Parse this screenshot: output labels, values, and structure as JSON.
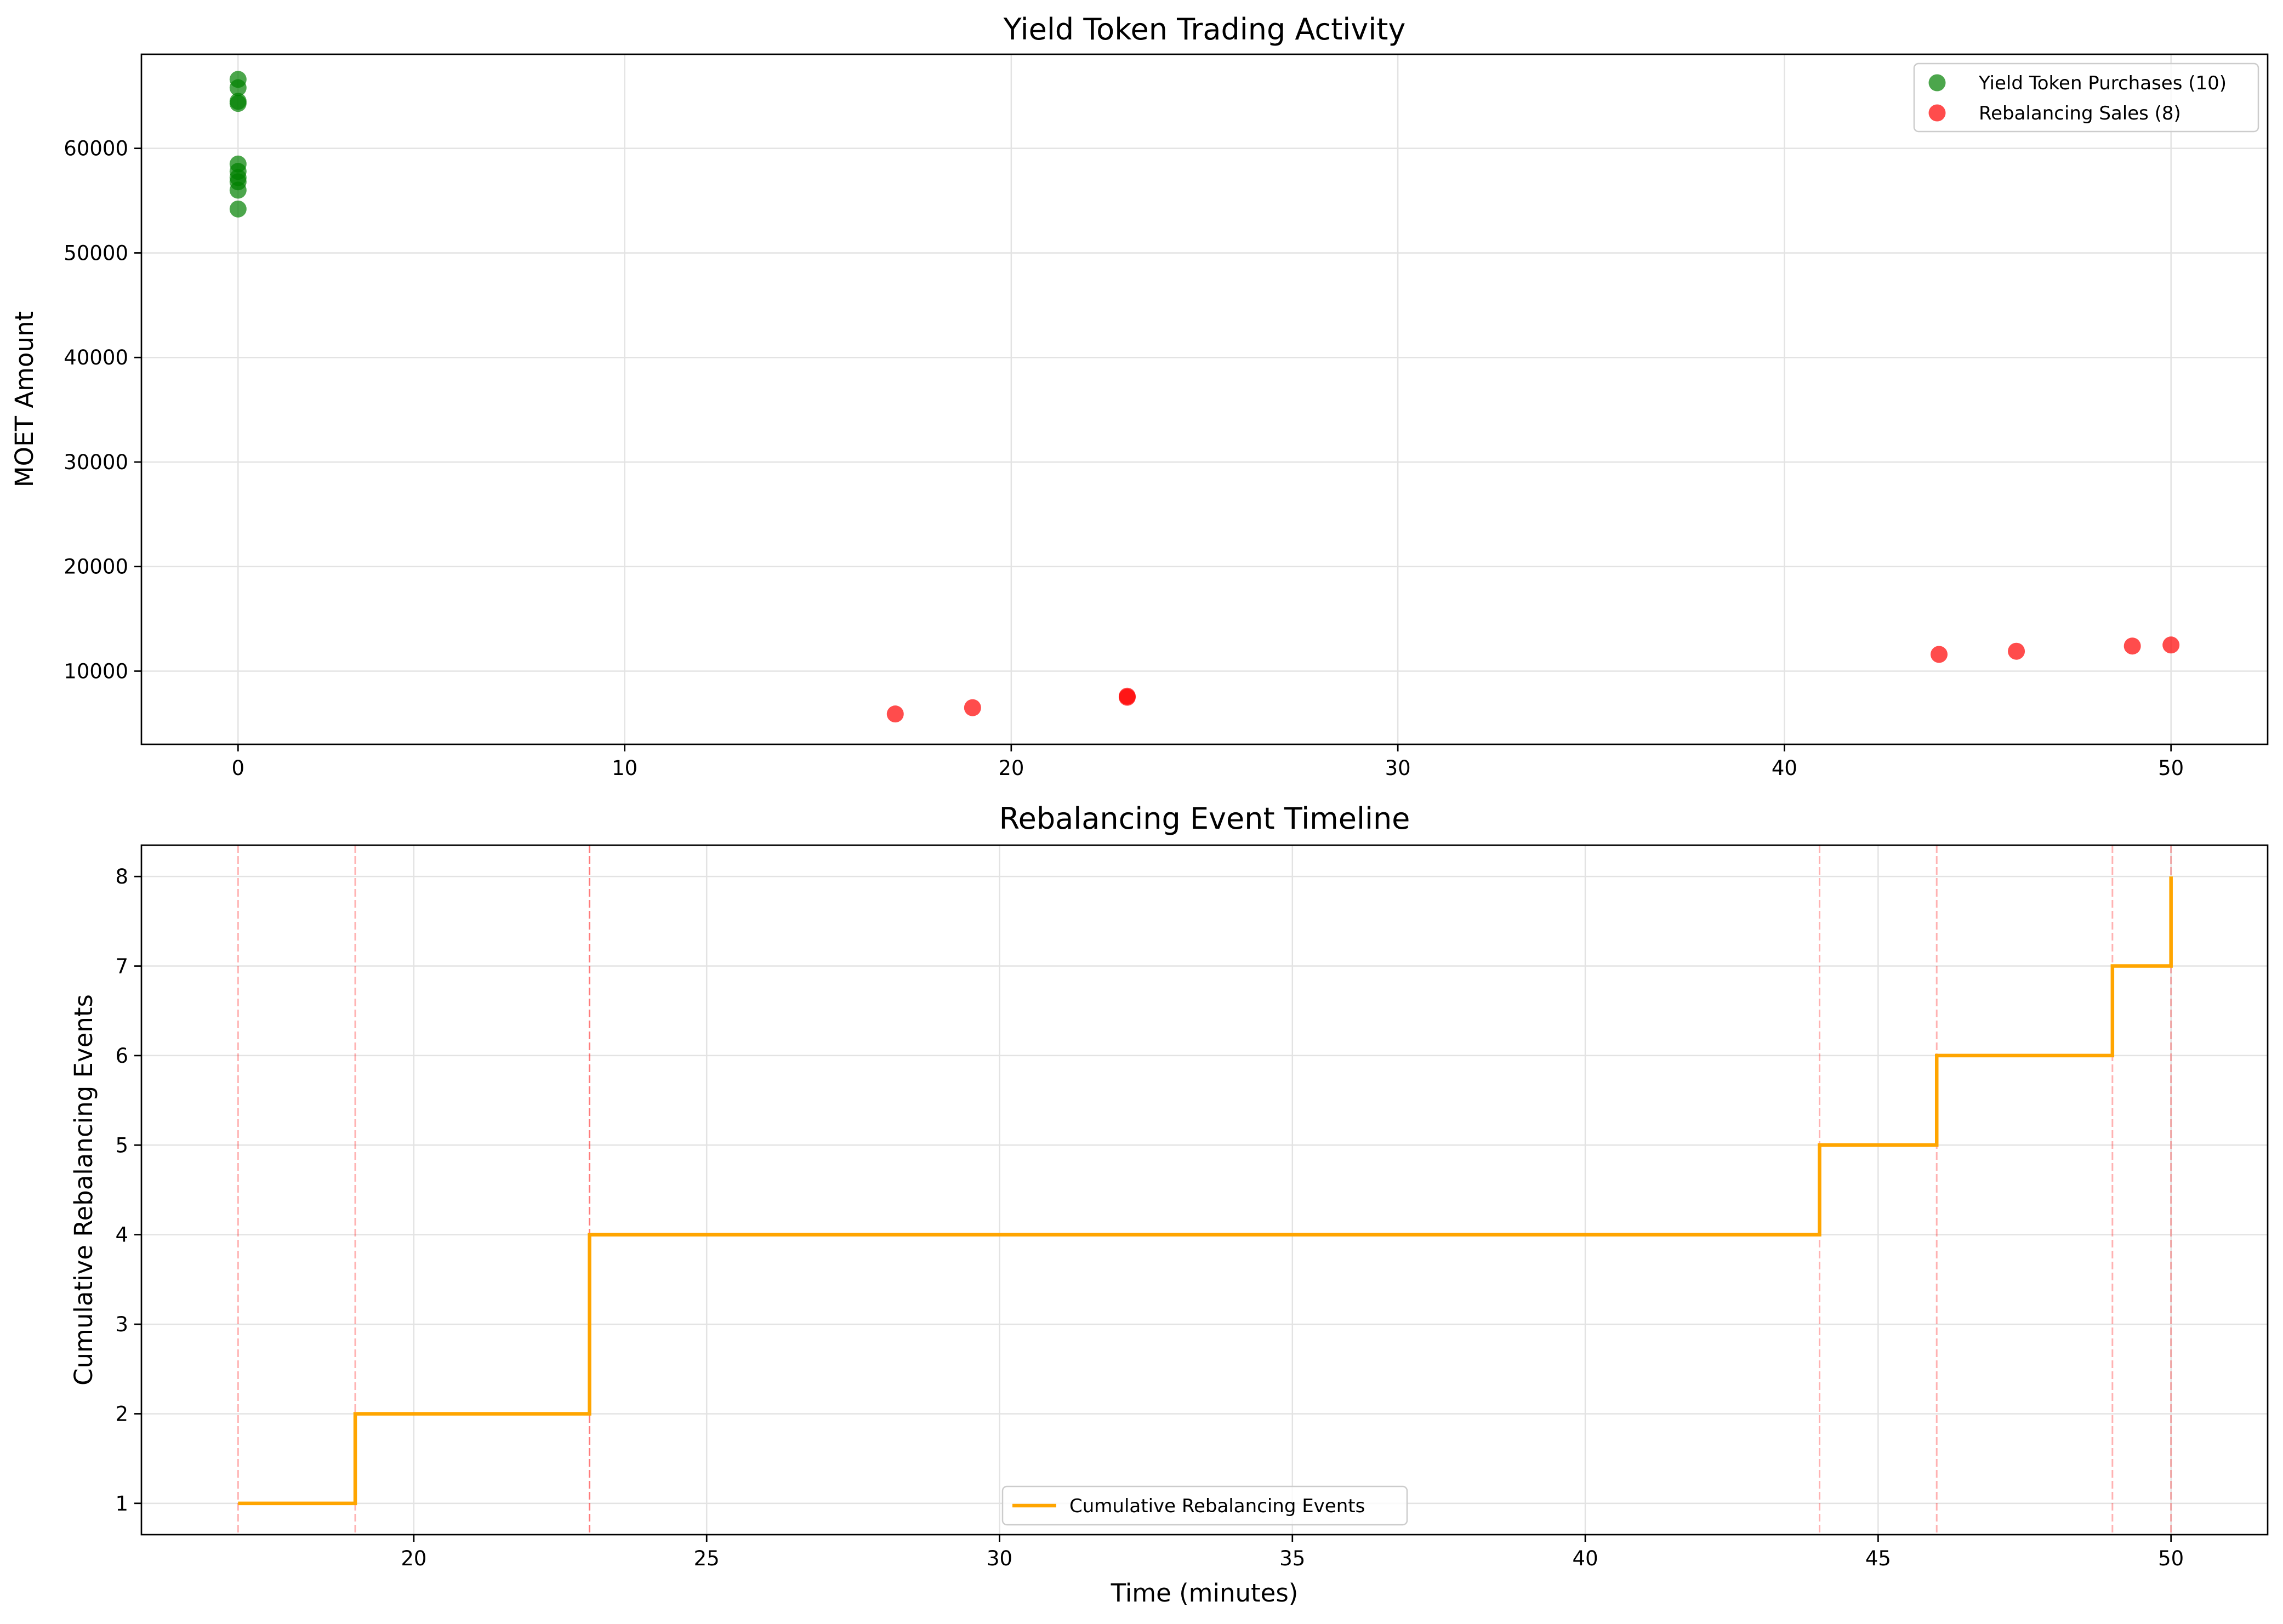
{
  "chart_data": [
    {
      "type": "scatter",
      "title": "Yield Token Trading Activity",
      "xlabel": "",
      "ylabel": "MOET Amount",
      "xlim": [
        -2.5,
        52.5
      ],
      "ylim": [
        3000,
        69000
      ],
      "xticks": [
        0,
        10,
        20,
        30,
        40,
        50
      ],
      "yticks": [
        10000,
        20000,
        30000,
        40000,
        50000,
        60000
      ],
      "grid": true,
      "legend_position": "top-right",
      "series": [
        {
          "name": "Yield Token Purchases (10)",
          "color": "#008000",
          "x": [
            0,
            0,
            0,
            0,
            0,
            0,
            0,
            0,
            0,
            0
          ],
          "y": [
            66600,
            65800,
            64500,
            64300,
            58500,
            57800,
            57200,
            56800,
            56000,
            54200
          ]
        },
        {
          "name": "Rebalancing Sales (8)",
          "color": "#ff0000",
          "x": [
            17,
            19,
            23,
            23,
            44,
            46,
            49,
            50
          ],
          "y": [
            5900,
            6500,
            7500,
            7600,
            11600,
            11900,
            12400,
            12500
          ]
        }
      ]
    },
    {
      "type": "line",
      "title": "Rebalancing Event Timeline",
      "xlabel": "Time (minutes)",
      "ylabel": "Cumulative Rebalancing Events",
      "xlim": [
        15.35,
        51.65
      ],
      "ylim": [
        0.65,
        8.35
      ],
      "xticks": [
        20,
        25,
        30,
        35,
        40,
        45,
        50
      ],
      "yticks": [
        1,
        2,
        3,
        4,
        5,
        6,
        7,
        8
      ],
      "grid": true,
      "legend_position": "bottom-center",
      "series": [
        {
          "name": "Cumulative Rebalancing Events",
          "color": "#ffa500",
          "step": "post",
          "x": [
            17,
            19,
            23,
            23,
            44,
            46,
            49,
            50
          ],
          "y": [
            1,
            2,
            3,
            4,
            5,
            6,
            7,
            8
          ]
        }
      ],
      "event_lines": {
        "color": "#ff0000",
        "style": "dashed",
        "x": [
          17,
          19,
          23,
          23,
          44,
          46,
          49,
          50
        ]
      }
    }
  ]
}
